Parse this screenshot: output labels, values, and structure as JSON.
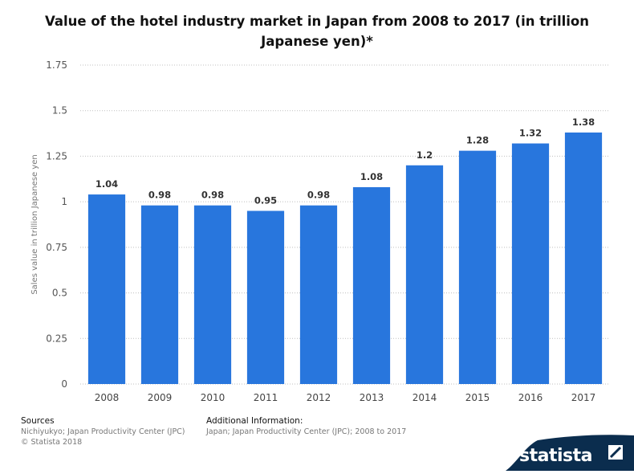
{
  "chart_data": {
    "type": "bar",
    "title": "Value of the hotel industry market in Japan from 2008 to 2017 (in trillion Japanese yen)*",
    "categories": [
      "2008",
      "2009",
      "2010",
      "2011",
      "2012",
      "2013",
      "2014",
      "2015",
      "2016",
      "2017"
    ],
    "values": [
      1.04,
      0.98,
      0.98,
      0.95,
      0.98,
      1.08,
      1.2,
      1.28,
      1.32,
      1.38
    ],
    "value_labels": [
      "1.04",
      "0.98",
      "0.98",
      "0.95",
      "0.98",
      "1.08",
      "1.2",
      "1.28",
      "1.32",
      "1.38"
    ],
    "ylabel": "Sales value in trillion Japanese yen",
    "xlabel": "",
    "ylim": [
      0,
      1.75
    ],
    "yticks": [
      0,
      0.25,
      0.5,
      0.75,
      1,
      1.25,
      1.5,
      1.75
    ],
    "ytick_labels": [
      "0",
      "0.25",
      "0.5",
      "0.75",
      "1",
      "1.25",
      "1.5",
      "1.75"
    ],
    "grid": true,
    "bar_color": "#2876dd"
  },
  "footer": {
    "sources_heading": "Sources",
    "sources_line1": "Nichiyukyo; Japan Productivity Center (JPC)",
    "sources_line2": "© Statista 2018",
    "additional_heading": "Additional Information:",
    "additional_line1": "Japan; Japan Productivity Center (JPC); 2008 to 2017"
  },
  "brand": {
    "name": "statista",
    "color": "#0b2d4e"
  }
}
